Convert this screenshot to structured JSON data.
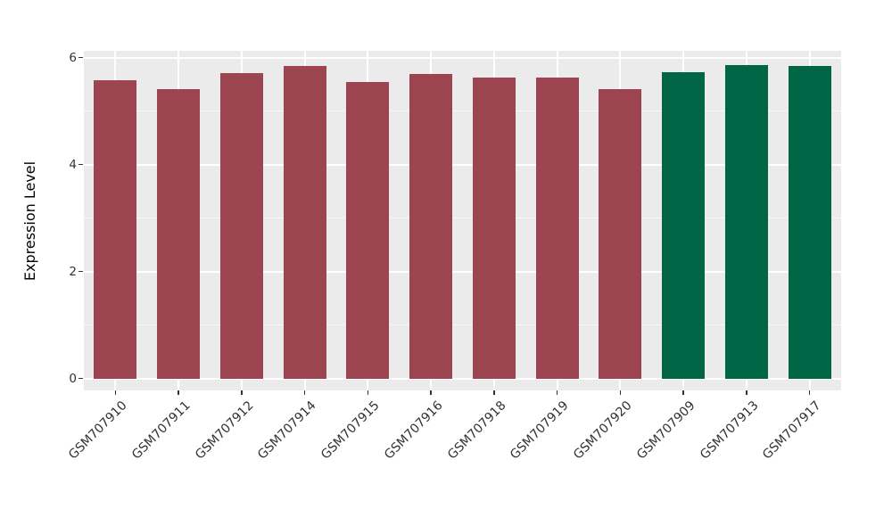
{
  "chart_data": {
    "type": "bar",
    "title": "",
    "ylabel": "Expression Level",
    "xlabel": "",
    "categories": [
      "GSM707910",
      "GSM707911",
      "GSM707912",
      "GSM707914",
      "GSM707915",
      "GSM707916",
      "GSM707918",
      "GSM707919",
      "GSM707920",
      "GSM707909",
      "GSM707913",
      "GSM707917"
    ],
    "values": [
      5.58,
      5.42,
      5.72,
      5.84,
      5.55,
      5.7,
      5.63,
      5.63,
      5.41,
      5.73,
      5.86,
      5.84
    ],
    "groups": [
      "red",
      "red",
      "red",
      "red",
      "red",
      "red",
      "red",
      "red",
      "red",
      "green",
      "green",
      "green"
    ],
    "group_colors": {
      "red": "#9C4450",
      "green": "#006646"
    },
    "yticks": [
      0,
      2,
      4,
      6
    ],
    "yticklabels": [
      "0",
      "2",
      "4",
      "6"
    ],
    "minor_yticks": [
      1,
      3,
      5
    ],
    "ylim": [
      -0.22,
      6.13
    ],
    "bar_width_fraction": 0.68,
    "grid": true,
    "legend_position": "none",
    "panel_bg": "#EBEBEB",
    "grid_major_color": "#FFFFFF",
    "grid_minor_color": "#F7F7F7",
    "axis_text_color": "#333333",
    "axis_title_color": "#000000"
  }
}
